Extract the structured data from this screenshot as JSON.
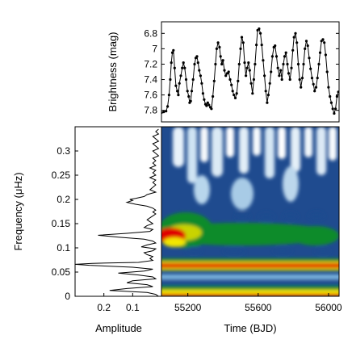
{
  "chart_data": [
    {
      "type": "line",
      "ylabel": "Brightness (mag)",
      "xlabel": "",
      "xlim": [
        55050,
        56060
      ],
      "ylim": [
        7.95,
        6.65
      ],
      "y_inverted": true,
      "yticks": [
        6.8,
        7,
        7.2,
        7.4,
        7.6,
        7.8
      ],
      "yticklabels": [
        "6.8",
        "7",
        "7.2",
        "7.4",
        "7.6",
        "7.8"
      ],
      "grid": false,
      "marker": "dot",
      "x": [
        55050,
        55063,
        55076,
        55085,
        55093,
        55100,
        55106,
        55112,
        55118,
        55125,
        55132,
        55140,
        55146,
        55152,
        55160,
        55168,
        55175,
        55182,
        55190,
        55198,
        55205,
        55210,
        55216,
        55222,
        55230,
        55238,
        55245,
        55252,
        55258,
        55265,
        55272,
        55279,
        55286,
        55293,
        55300,
        55306,
        55313,
        55320,
        55328,
        55334,
        55342,
        55350,
        55357,
        55364,
        55372,
        55380,
        55386,
        55393,
        55400,
        55408,
        55416,
        55424,
        55432,
        55440,
        55448,
        55455,
        55462,
        55470,
        55478,
        55485,
        55492,
        55500,
        55507,
        55515,
        55523,
        55530,
        55537,
        55545,
        55552,
        55560,
        55568,
        55575,
        55582,
        55590,
        55597,
        55605,
        55613,
        55620,
        55628,
        55636,
        55643,
        55651,
        55658,
        55666,
        55673,
        55681,
        55689,
        55696,
        55704,
        55712,
        55720,
        55728,
        55735,
        55743,
        55750,
        55758,
        55766,
        55773,
        55781,
        55789,
        55797,
        55804,
        55812,
        55820,
        55828,
        55836,
        55843,
        55851,
        55858,
        55866,
        55874,
        55882,
        55890,
        55898,
        55906,
        55914,
        55921,
        55929,
        55937,
        55945,
        55952,
        55960,
        55968,
        55976,
        55984,
        55992,
        56000,
        56008,
        56016,
        56024,
        56032,
        56040,
        56048,
        56056
      ],
      "y": [
        7.83,
        7.82,
        7.81,
        7.75,
        7.6,
        7.4,
        7.18,
        7.05,
        7.02,
        7.25,
        7.48,
        7.55,
        7.6,
        7.45,
        7.35,
        7.25,
        7.18,
        7.25,
        7.4,
        7.55,
        7.62,
        7.7,
        7.68,
        7.55,
        7.4,
        7.2,
        7.12,
        7.1,
        7.18,
        7.28,
        7.35,
        7.45,
        7.58,
        7.66,
        7.72,
        7.74,
        7.7,
        7.73,
        7.76,
        7.78,
        7.62,
        7.42,
        7.2,
        7.0,
        6.92,
        6.98,
        7.1,
        7.2,
        7.15,
        7.28,
        7.35,
        7.32,
        7.3,
        7.4,
        7.47,
        7.55,
        7.6,
        7.64,
        7.58,
        7.42,
        7.2,
        7.0,
        6.85,
        6.92,
        7.18,
        7.35,
        7.25,
        7.18,
        7.28,
        7.45,
        7.58,
        7.4,
        7.2,
        6.95,
        6.76,
        6.74,
        6.8,
        6.95,
        7.15,
        7.35,
        7.55,
        7.7,
        7.6,
        7.45,
        7.3,
        7.1,
        6.98,
        6.96,
        7.1,
        7.25,
        7.35,
        7.28,
        7.4,
        7.2,
        7.1,
        7.05,
        7.2,
        7.32,
        7.4,
        7.25,
        7.02,
        6.85,
        6.8,
        6.92,
        7.2,
        7.4,
        7.5,
        7.38,
        7.2,
        7.0,
        6.9,
        6.96,
        7.12,
        7.26,
        7.38,
        7.46,
        7.55,
        7.5,
        7.38,
        7.2,
        7.05,
        6.9,
        6.88,
        6.92,
        7.08,
        7.3,
        7.5,
        7.62,
        7.7,
        7.78,
        7.84,
        7.78,
        7.62,
        7.56
      ]
    },
    {
      "type": "line",
      "xlabel": "Amplitude",
      "ylabel": "Frequency (μHz)",
      "xlim": [
        0.3,
        0
      ],
      "ylim": [
        0,
        0.35
      ],
      "x_inverted": true,
      "xticks": [
        0.2,
        0.1
      ],
      "xticklabels": [
        "0.2",
        "0.1"
      ],
      "yticks": [
        0,
        0.05,
        0.1,
        0.15,
        0.2,
        0.25,
        0.3
      ],
      "yticklabels": [
        "0",
        "0.05",
        "0.1",
        "0.15",
        "0.2",
        "0.25",
        "0.3"
      ],
      "grid": false,
      "frequency": [
        0,
        0.004,
        0.008,
        0.012,
        0.016,
        0.02,
        0.024,
        0.028,
        0.032,
        0.036,
        0.04,
        0.044,
        0.048,
        0.052,
        0.056,
        0.06,
        0.064,
        0.066,
        0.068,
        0.07,
        0.074,
        0.078,
        0.082,
        0.086,
        0.09,
        0.094,
        0.098,
        0.102,
        0.106,
        0.11,
        0.114,
        0.118,
        0.122,
        0.126,
        0.13,
        0.134,
        0.138,
        0.142,
        0.146,
        0.15,
        0.154,
        0.158,
        0.162,
        0.166,
        0.17,
        0.174,
        0.178,
        0.182,
        0.186,
        0.19,
        0.194,
        0.198,
        0.2,
        0.202,
        0.206,
        0.21,
        0.215,
        0.22,
        0.225,
        0.23,
        0.235,
        0.24,
        0.245,
        0.25,
        0.255,
        0.26,
        0.265,
        0.27,
        0.275,
        0.28,
        0.285,
        0.29,
        0.295,
        0.3,
        0.305,
        0.31,
        0.315,
        0.32,
        0.325,
        0.33,
        0.335,
        0.34,
        0.345
      ],
      "amplitude": [
        0.01,
        0.02,
        0.05,
        0.18,
        0.12,
        0.03,
        0.05,
        0.12,
        0.1,
        0.02,
        0.03,
        0.08,
        0.15,
        0.06,
        0.03,
        0.1,
        0.25,
        0.3,
        0.24,
        0.08,
        0.03,
        0.04,
        0.03,
        0.05,
        0.06,
        0.03,
        0.02,
        0.07,
        0.05,
        0.02,
        0.03,
        0.06,
        0.15,
        0.22,
        0.12,
        0.04,
        0.03,
        0.06,
        0.05,
        0.03,
        0.04,
        0.05,
        0.04,
        0.03,
        0.02,
        0.03,
        0.02,
        0.03,
        0.05,
        0.09,
        0.12,
        0.1,
        0.11,
        0.09,
        0.06,
        0.05,
        0.02,
        0.04,
        0.03,
        0.02,
        0.03,
        0.02,
        0.04,
        0.02,
        0.03,
        0.02,
        0.04,
        0.02,
        0.03,
        0.02,
        0.03,
        0.01,
        0.02,
        0.03,
        0.01,
        0.02,
        0.03,
        0.01,
        0.02,
        0.03,
        0.01,
        0.02,
        0.01
      ]
    },
    {
      "type": "heatmap",
      "xlabel": "Time (BJD)",
      "ylabel": "",
      "xlim": [
        55050,
        56060
      ],
      "ylim": [
        0,
        0.35
      ],
      "xticks": [
        55200,
        55600,
        56000
      ],
      "xticklabels": [
        "55200",
        "55600",
        "56000"
      ],
      "colormap": [
        "#ffffff",
        "#1f4b8f",
        "#0e8b2a",
        "#f2e600",
        "#e00000"
      ],
      "grid": false
    }
  ]
}
